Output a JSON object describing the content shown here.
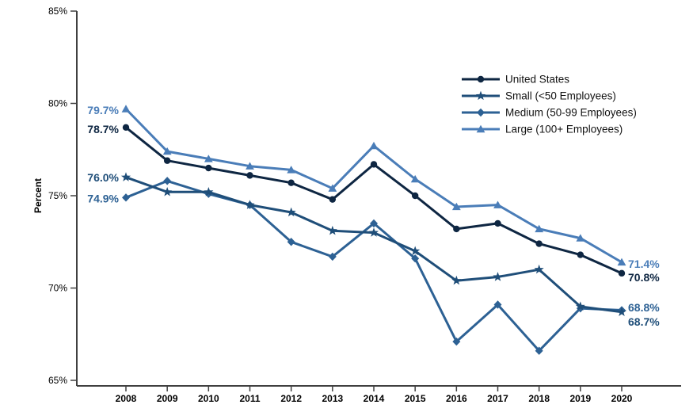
{
  "figure": {
    "background": "#ffffff",
    "axis_color": "#404040"
  },
  "chart_data": {
    "type": "line",
    "title": "",
    "xlabel": "",
    "ylabel": "Percent",
    "ylim": [
      65,
      85
    ],
    "ytick_values": [
      85,
      80,
      75,
      70,
      65
    ],
    "ytick_labels": [
      "85%",
      "80%",
      "75%",
      "70%",
      "65%"
    ],
    "x": [
      2008,
      2009,
      2010,
      2011,
      2012,
      2013,
      2014,
      2015,
      2016,
      2017,
      2018,
      2019,
      2020
    ],
    "grid": false,
    "legend_position": "upper-right",
    "series": [
      {
        "name": "United States",
        "marker": "circle",
        "color": "#0e2642",
        "values": [
          78.7,
          76.9,
          76.5,
          76.1,
          75.7,
          74.8,
          76.7,
          75.0,
          73.2,
          73.5,
          72.4,
          71.8,
          70.8
        ],
        "start_label": "78.7%",
        "end_label": "70.8%"
      },
      {
        "name": "Small (<50 Employees)",
        "marker": "star",
        "color": "#1f4e79",
        "values": [
          76.0,
          75.2,
          75.2,
          74.5,
          74.1,
          73.1,
          73.0,
          72.0,
          70.4,
          70.6,
          71.0,
          69.0,
          68.7
        ],
        "start_label": "76.0%",
        "end_label": "68.7%"
      },
      {
        "name": "Medium (50-99 Employees)",
        "marker": "diamond",
        "color": "#2d6194",
        "values": [
          74.9,
          75.8,
          75.1,
          74.5,
          72.5,
          71.7,
          73.5,
          71.6,
          67.1,
          69.1,
          66.6,
          68.9,
          68.8
        ],
        "start_label": "74.9%",
        "end_label": "68.8%"
      },
      {
        "name": "Large (100+ Employees)",
        "marker": "triangle",
        "color": "#4a7db8",
        "values": [
          79.7,
          77.4,
          77.0,
          76.6,
          76.4,
          75.4,
          77.7,
          75.9,
          74.4,
          74.5,
          73.2,
          72.7,
          71.4
        ],
        "start_label": "79.7%",
        "end_label": "71.4%"
      }
    ]
  }
}
